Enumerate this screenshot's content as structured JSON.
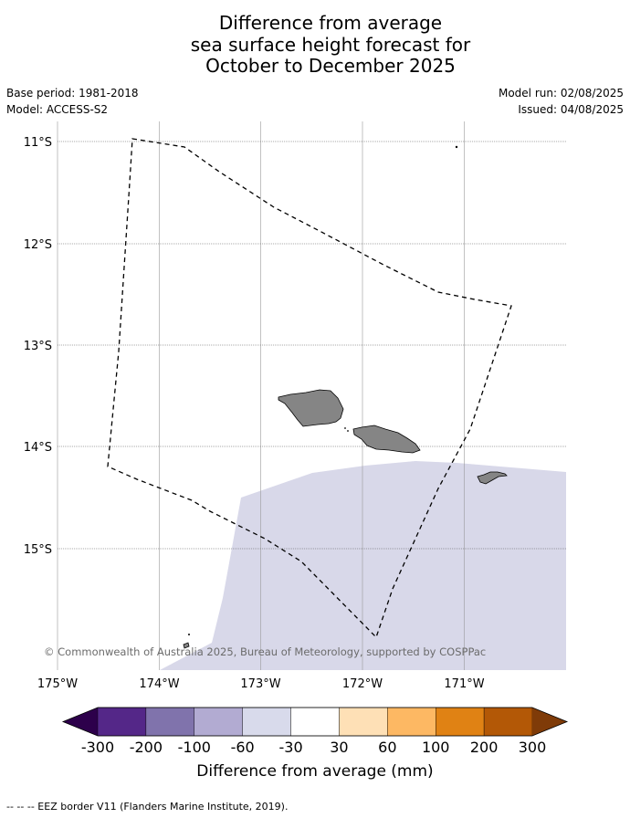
{
  "title": {
    "line1": "Difference from average",
    "line2": "sea surface height forecast for",
    "line3": "October to December 2025"
  },
  "meta": {
    "base_period": "Base period: 1981-2018",
    "model": "Model: ACCESS-S2",
    "model_run": "Model run: 02/08/2025",
    "issued": "Issued: 04/08/2025"
  },
  "map": {
    "lat_labels": [
      "11°S",
      "12°S",
      "13°S",
      "14°S",
      "15°S"
    ],
    "lon_labels": [
      "175°W",
      "174°W",
      "173°W",
      "172°W",
      "171°W"
    ],
    "credit": "© Commonwealth of Australia 2025, Bureau of Meteorology, supported by COSPPac",
    "colors": {
      "land": "#858585",
      "anomaly_fill": "#d8d8e9"
    }
  },
  "colorbar": {
    "labels": [
      "-300",
      "-200",
      "-100",
      "-60",
      "-30",
      "30",
      "60",
      "100",
      "200",
      "300"
    ],
    "colors": [
      "#2d004b",
      "#542788",
      "#8073ac",
      "#b2abd2",
      "#d8daeb",
      "#ffffff",
      "#fee0b6",
      "#fdb863",
      "#e08214",
      "#b35806",
      "#7f3b08"
    ],
    "title": "Difference from average (mm)"
  },
  "legend": {
    "text": "--  --  -- EEZ border V11 (Flanders Marine Institute, 2019)."
  }
}
